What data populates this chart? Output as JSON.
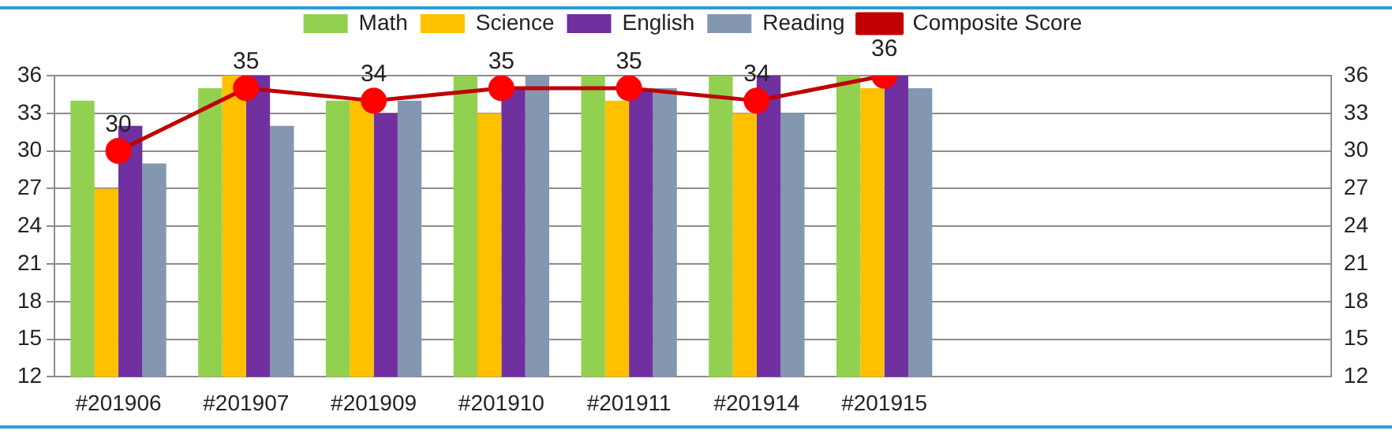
{
  "chart_data": {
    "type": "bar",
    "categories": [
      "#201906",
      "#201907",
      "#201909",
      "#201910",
      "#201911",
      "#201914",
      "#201915",
      null,
      null,
      null
    ],
    "series": [
      {
        "name": "Math",
        "color": "#92d050",
        "values": [
          34,
          35,
          34,
          36,
          36,
          36,
          36,
          null,
          null,
          null
        ]
      },
      {
        "name": "Science",
        "color": "#ffc000",
        "values": [
          27,
          36,
          34,
          33,
          34,
          33,
          35,
          null,
          null,
          null
        ]
      },
      {
        "name": "English",
        "color": "#7030a0",
        "values": [
          32,
          36,
          33,
          35,
          35,
          36,
          36,
          null,
          null,
          null
        ]
      },
      {
        "name": "Reading",
        "color": "#8497b0",
        "values": [
          29,
          32,
          34,
          36,
          35,
          33,
          35,
          null,
          null,
          null
        ]
      },
      {
        "name": "Composite Score",
        "type": "line",
        "color": "#c00000",
        "marker": "circle",
        "values": [
          30,
          35,
          34,
          35,
          35,
          34,
          36,
          null,
          null,
          null
        ],
        "value_labels": [
          "30",
          "35",
          "34",
          "35",
          "35",
          "34",
          "36",
          null,
          null,
          null
        ]
      }
    ],
    "ylim": [
      12,
      36
    ],
    "yticks": [
      12,
      15,
      18,
      21,
      24,
      27,
      30,
      33,
      36
    ],
    "y2lim": [
      12,
      36
    ],
    "y2ticks": [
      12,
      15,
      18,
      21,
      24,
      27,
      30,
      33,
      36
    ],
    "grid": "y",
    "legend": "top"
  }
}
